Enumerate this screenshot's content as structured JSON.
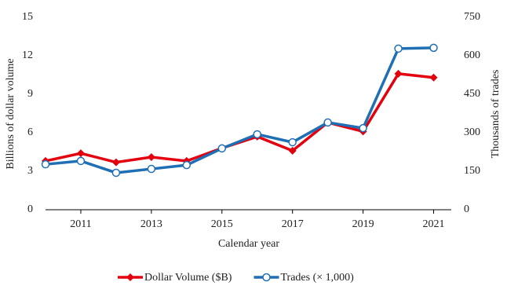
{
  "chart_data": {
    "type": "line",
    "x": [
      2010,
      2011,
      2012,
      2013,
      2014,
      2015,
      2016,
      2017,
      2018,
      2019,
      2020,
      2021
    ],
    "xlim": [
      2010,
      2021.5
    ],
    "xticks": [
      2011,
      2013,
      2015,
      2017,
      2019,
      2021
    ],
    "x_label": "Calendar year",
    "y_label": "Billions of dollar volume",
    "y2_label": "Thousands of trades",
    "ylim": [
      0,
      15
    ],
    "yticks": [
      0,
      3,
      6,
      9,
      12,
      15
    ],
    "y2lim": [
      0,
      750
    ],
    "y2ticks": [
      0,
      150,
      300,
      450,
      600,
      750
    ],
    "legend": "bottom",
    "series": [
      {
        "name": "Dollar Volume ($B)",
        "color": "#e3000f",
        "marker": "diamond",
        "values": [
          3.8,
          4.4,
          3.7,
          4.1,
          3.8,
          4.8,
          5.7,
          4.6,
          6.8,
          6.1,
          10.6,
          10.3
        ]
      },
      {
        "name": "Trades (× 1,000)",
        "color": "#1f6fb5",
        "marker": "circle",
        "axis": "y2",
        "values": [
          177,
          190,
          144,
          159,
          174,
          239,
          294,
          263,
          340,
          318,
          628,
          631
        ]
      }
    ]
  }
}
